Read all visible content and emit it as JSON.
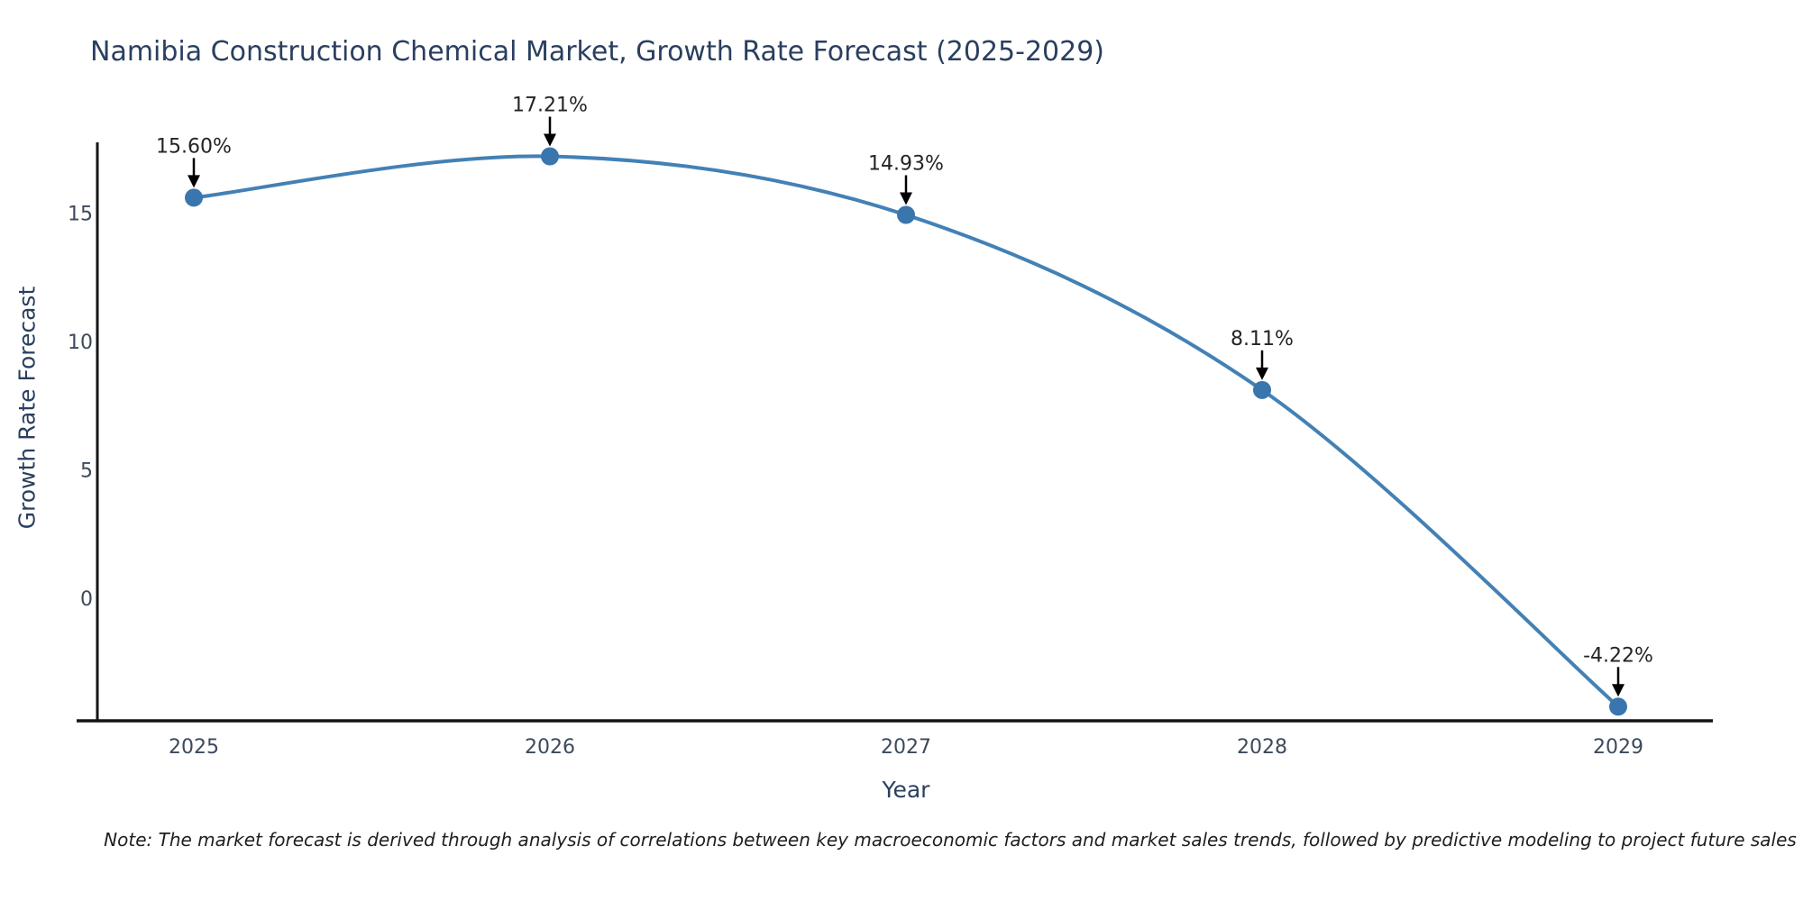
{
  "title": "Namibia Construction Chemical Market, Growth Rate Forecast (2025-2029)",
  "note": "Note: The market forecast is derived through analysis of correlations between key macroeconomic factors and market sales trends, followed by predictive modeling to project future sales",
  "chart_data": {
    "type": "line",
    "title": "Namibia Construction Chemical Market, Growth Rate Forecast (2025-2029)",
    "xlabel": "Year",
    "ylabel": "Growth Rate Forecast",
    "categories": [
      "2025",
      "2026",
      "2027",
      "2028",
      "2029"
    ],
    "series": [
      {
        "name": "Growth Rate Forecast",
        "values": [
          15.6,
          17.21,
          14.93,
          8.11,
          -4.22
        ]
      }
    ],
    "point_labels": [
      "15.60%",
      "17.21%",
      "14.93%",
      "8.11%",
      "-4.22%"
    ],
    "yticks": [
      0,
      5,
      10,
      15
    ],
    "ylim": [
      -4.8,
      17.8
    ],
    "grid": false,
    "legend": "none",
    "curve": "spline",
    "line_color": "#4381b5",
    "marker_color": "#3a76ad",
    "axis_color": "#141414",
    "annotation_arrow_color": "#000000"
  }
}
